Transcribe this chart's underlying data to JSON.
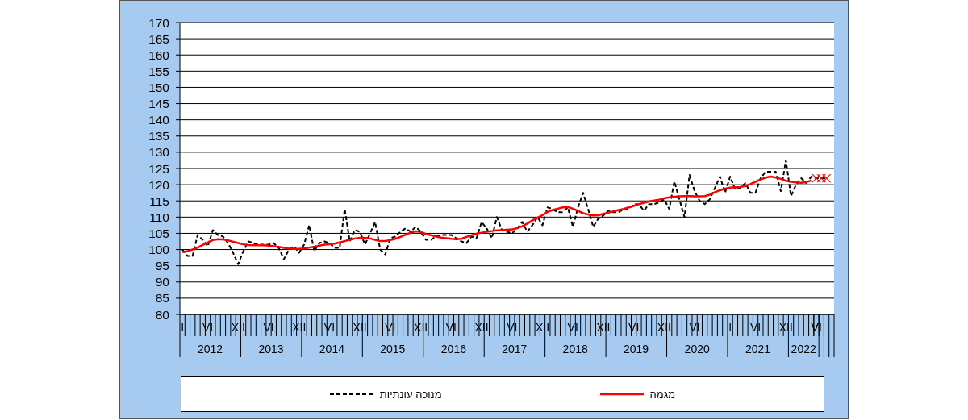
{
  "chart_data": {
    "type": "line",
    "categories": [
      "I",
      null,
      null,
      null,
      null,
      "VI",
      null,
      null,
      null,
      null,
      null,
      "XII",
      null,
      null,
      null,
      null,
      null,
      "VI",
      null,
      null,
      null,
      null,
      null,
      "XII",
      null,
      null,
      null,
      null,
      null,
      "VI",
      null,
      null,
      null,
      null,
      null,
      "XII",
      null,
      null,
      null,
      null,
      null,
      "VI",
      null,
      null,
      null,
      null,
      null,
      "XII",
      null,
      null,
      null,
      null,
      null,
      "VI",
      null,
      null,
      null,
      null,
      null,
      "XII",
      null,
      null,
      null,
      null,
      null,
      "VI",
      null,
      null,
      null,
      null,
      null,
      "XII",
      null,
      null,
      null,
      null,
      null,
      "VI",
      null,
      null,
      null,
      null,
      null,
      "XII",
      null,
      null,
      null,
      null,
      null,
      "VI",
      null,
      null,
      null,
      null,
      null,
      "XII",
      null,
      null,
      null,
      null,
      null,
      "VI",
      null,
      null,
      null,
      null,
      null,
      null,
      "I",
      null,
      null,
      null,
      null,
      "VI",
      null,
      null,
      null,
      null,
      null,
      "XII",
      null,
      null,
      null,
      null,
      null,
      "VI",
      null,
      null,
      null
    ],
    "x2lim": [
      "2012-01",
      "2022-10"
    ],
    "x2ticks": [
      {
        "value": "2012-07",
        "label": "2012"
      },
      {
        "value": "2013-07",
        "label": "2013"
      },
      {
        "value": "2014-07",
        "label": "2014"
      },
      {
        "value": "2015-07",
        "label": "2015"
      },
      {
        "value": "2016-07",
        "label": "2016"
      },
      {
        "value": "2017-07",
        "label": "2017"
      },
      {
        "value": "2018-07",
        "label": "2018"
      },
      {
        "value": "2019-07",
        "label": "2019"
      },
      {
        "value": "2020-07",
        "label": "2020"
      },
      {
        "value": "2021-07",
        "label": "2021"
      },
      {
        "value": "2022-04",
        "label": "2022"
      }
    ],
    "ylim": [
      80,
      170
    ],
    "yticks": [
      80,
      85,
      90,
      95,
      100,
      105,
      110,
      115,
      120,
      125,
      130,
      135,
      140,
      145,
      150,
      155,
      160,
      165,
      170
    ],
    "grid": "y",
    "legend": "bottom",
    "series": [
      {
        "name": "מנוכה עונתיות",
        "color": "#000000",
        "line_style": "dashed",
        "values": [
          100,
          98,
          98,
          104.5,
          103,
          101,
          106,
          104.5,
          104,
          102,
          99,
          95.5,
          99.5,
          102.5,
          102,
          101.5,
          101.5,
          101.5,
          102,
          100.5,
          97,
          100,
          101,
          99,
          101.5,
          107.5,
          99.5,
          102,
          102.5,
          102,
          100.5,
          100.5,
          112.5,
          102.5,
          106,
          105.5,
          101.5,
          105,
          108.5,
          100,
          98.5,
          103.5,
          104,
          105.5,
          106.5,
          105.5,
          107,
          105.5,
          103,
          103,
          104,
          104.5,
          104.5,
          104.5,
          103.5,
          102.5,
          102,
          104,
          103.5,
          108.5,
          106.5,
          103.5,
          110,
          106,
          105.5,
          105,
          106.5,
          108.5,
          105.5,
          107.5,
          110,
          107.5,
          113,
          112.5,
          111.5,
          111.5,
          113,
          107,
          113,
          117.5,
          112.5,
          107,
          109.5,
          110.5,
          112,
          111.5,
          111.5,
          112.5,
          112.5,
          114,
          114,
          112,
          114,
          114,
          114.5,
          115.5,
          112.5,
          121,
          115.5,
          110,
          123,
          118,
          115,
          114,
          115.5,
          119,
          122.5,
          117.5,
          122.5,
          118.5,
          119,
          120.5,
          117.5,
          117.5,
          122,
          124,
          124,
          124,
          118,
          127.5,
          116.5,
          120,
          122,
          120.5,
          122.5,
          122,
          122,
          122,
          null
        ]
      },
      {
        "name": "מגמה",
        "color": "#ff0000",
        "line_style": "solid",
        "values": [
          99.2,
          99.5,
          100.0,
          100.6,
          101.4,
          102.2,
          102.9,
          103.2,
          103.1,
          102.8,
          102.4,
          102.0,
          101.6,
          101.4,
          101.3,
          101.3,
          101.3,
          101.2,
          101.0,
          100.8,
          100.5,
          100.3,
          100.2,
          100.2,
          100.4,
          100.6,
          100.9,
          101.2,
          101.5,
          101.6,
          101.8,
          102.2,
          102.6,
          103.0,
          103.4,
          103.6,
          103.6,
          103.4,
          103.0,
          102.6,
          102.6,
          102.9,
          103.3,
          103.9,
          104.6,
          105.2,
          105.6,
          105.4,
          104.8,
          104.4,
          104.0,
          103.7,
          103.5,
          103.3,
          103.2,
          103.3,
          103.9,
          104.4,
          104.9,
          105.2,
          105.5,
          105.7,
          105.9,
          106.0,
          106.1,
          106.2,
          106.6,
          107.2,
          108.0,
          109.0,
          109.8,
          110.6,
          111.6,
          112.2,
          112.6,
          113.0,
          113.1,
          112.6,
          111.9,
          111.2,
          110.8,
          110.5,
          110.6,
          111.0,
          111.4,
          111.8,
          112.2,
          112.5,
          113.0,
          113.5,
          114.0,
          114.4,
          114.8,
          115.1,
          115.4,
          115.8,
          116.1,
          116.3,
          116.4,
          116.5,
          116.5,
          116.4,
          116.4,
          116.5,
          116.9,
          117.7,
          118.3,
          118.8,
          119.1,
          119.2,
          119.3,
          119.6,
          120.2,
          120.9,
          121.6,
          122.2,
          122.5,
          122.2,
          121.8,
          121.2,
          120.9,
          120.7,
          120.6,
          120.8,
          121.3,
          null,
          null,
          null,
          null
        ]
      },
      {
        "type": "scatter",
        "color": "#ff0000",
        "marker": "cross",
        "values": [
          null,
          null,
          null,
          null,
          null,
          null,
          null,
          null,
          null,
          null,
          null,
          null,
          null,
          null,
          null,
          null,
          null,
          null,
          null,
          null,
          null,
          null,
          null,
          null,
          null,
          null,
          null,
          null,
          null,
          null,
          null,
          null,
          null,
          null,
          null,
          null,
          null,
          null,
          null,
          null,
          null,
          null,
          null,
          null,
          null,
          null,
          null,
          null,
          null,
          null,
          null,
          null,
          null,
          null,
          null,
          null,
          null,
          null,
          null,
          null,
          null,
          null,
          null,
          null,
          null,
          null,
          null,
          null,
          null,
          null,
          null,
          null,
          null,
          null,
          null,
          null,
          null,
          null,
          null,
          null,
          null,
          null,
          null,
          null,
          null,
          null,
          null,
          null,
          null,
          null,
          null,
          null,
          null,
          null,
          null,
          null,
          null,
          null,
          null,
          null,
          null,
          null,
          null,
          null,
          null,
          null,
          null,
          null,
          null,
          null,
          null,
          null,
          null,
          null,
          null,
          null,
          null,
          null,
          null,
          null,
          null,
          null,
          null,
          null,
          null,
          122,
          122,
          122,
          null
        ]
      }
    ]
  }
}
